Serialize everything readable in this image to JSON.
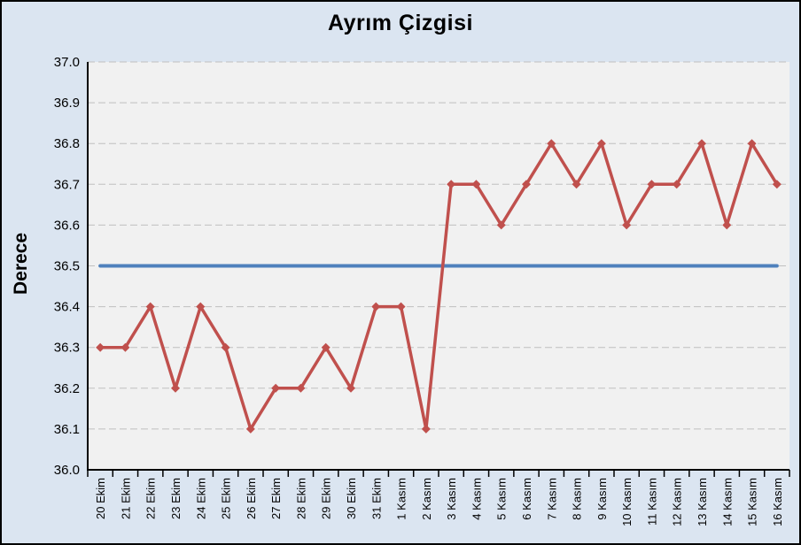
{
  "chart_data": {
    "type": "line",
    "title": "Ayrım Çizgisi",
    "ylabel": "Derece",
    "xlabel": "",
    "legend_position": "none",
    "grid": "horizontal-dashed",
    "ylim": [
      36.0,
      37.0
    ],
    "ytick_step": 0.1,
    "ytick_decimals": 1,
    "categories": [
      "20 Ekim",
      "21 Ekim",
      "22 Ekim",
      "23 Ekim",
      "24 Ekim",
      "25 Ekim",
      "26 Ekim",
      "27 Ekim",
      "28 Ekim",
      "29 Ekim",
      "30 Ekim",
      "31 Ekim",
      "1 Kasım",
      "2 Kasım",
      "3 Kasım",
      "4 Kasım",
      "5 Kasım",
      "6 Kasım",
      "7 Kasım",
      "8 Kasım",
      "9 Kasım",
      "10 Kasım",
      "11 Kasım",
      "12 Kasım",
      "13 Kasım",
      "14 Kasım",
      "15 Kasım",
      "16 Kasım"
    ],
    "series": [
      {
        "id": "derece-series",
        "color": "#C0504D",
        "marker": "diamond",
        "marker_size": 5,
        "line_width": 3.5,
        "values": [
          36.3,
          36.3,
          36.4,
          36.2,
          36.4,
          36.3,
          36.1,
          36.2,
          36.2,
          36.3,
          36.2,
          36.4,
          36.4,
          36.1,
          36.7,
          36.7,
          36.6,
          36.7,
          36.8,
          36.7,
          36.8,
          36.6,
          36.7,
          36.7,
          36.8,
          36.6,
          36.8,
          36.7
        ]
      },
      {
        "id": "ayrim-cizgisi-reference-line",
        "color": "#4F81BD",
        "marker": "none",
        "marker_size": 0,
        "line_width": 4,
        "values": [
          36.5,
          36.5,
          36.5,
          36.5,
          36.5,
          36.5,
          36.5,
          36.5,
          36.5,
          36.5,
          36.5,
          36.5,
          36.5,
          36.5,
          36.5,
          36.5,
          36.5,
          36.5,
          36.5,
          36.5,
          36.5,
          36.5,
          36.5,
          36.5,
          36.5,
          36.5,
          36.5,
          36.5
        ]
      }
    ],
    "colors": {
      "outer_background": "#DBE5F1",
      "plot_background": "#F1F1F1",
      "gridline": "#C0C0C0",
      "axis": "#000000",
      "text": "#000000"
    }
  }
}
